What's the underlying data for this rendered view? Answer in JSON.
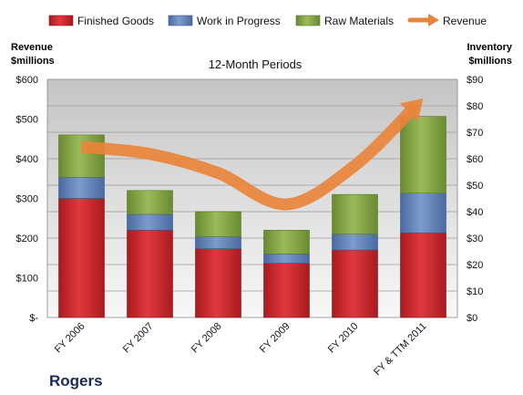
{
  "chart_data": {
    "type": "bar",
    "stacked": true,
    "title": "12-Month Periods",
    "brand": "Rogers",
    "categories": [
      "FY 2006",
      "FY 2007",
      "FY 2008",
      "FY 2009",
      "FY 2010",
      "FY & TTM 2011"
    ],
    "series": [
      {
        "name": "Finished Goods",
        "axis": "right",
        "color": "#c8242a",
        "values": [
          45,
          33,
          26,
          20.5,
          25.5,
          32
        ]
      },
      {
        "name": "Work in Progress",
        "axis": "right",
        "color": "#5a7bb0",
        "values": [
          8,
          6,
          4.5,
          3.5,
          6,
          15
        ]
      },
      {
        "name": "Raw Materials",
        "axis": "right",
        "color": "#7a9a3e",
        "values": [
          16,
          9,
          9.5,
          9,
          15,
          29
        ]
      }
    ],
    "line_series": {
      "name": "Revenue",
      "axis": "left",
      "color": "#e8843a",
      "values": [
        430,
        412,
        364,
        285,
        383,
        552
      ]
    },
    "left_axis": {
      "label_line1": "Revenue",
      "label_line2": "$millions",
      "ylim": [
        0,
        600
      ],
      "ticks": [
        "$-",
        "$100",
        "$200",
        "$300",
        "$400",
        "$500",
        "$600"
      ]
    },
    "right_axis": {
      "label_line1": "Inventory",
      "label_line2": "$millions",
      "ylim": [
        0,
        90
      ],
      "ticks": [
        "$0",
        "$10",
        "$20",
        "$30",
        "$40",
        "$50",
        "$60",
        "$70",
        "$80",
        "$90"
      ]
    },
    "grid": true,
    "legend_position": "top"
  }
}
